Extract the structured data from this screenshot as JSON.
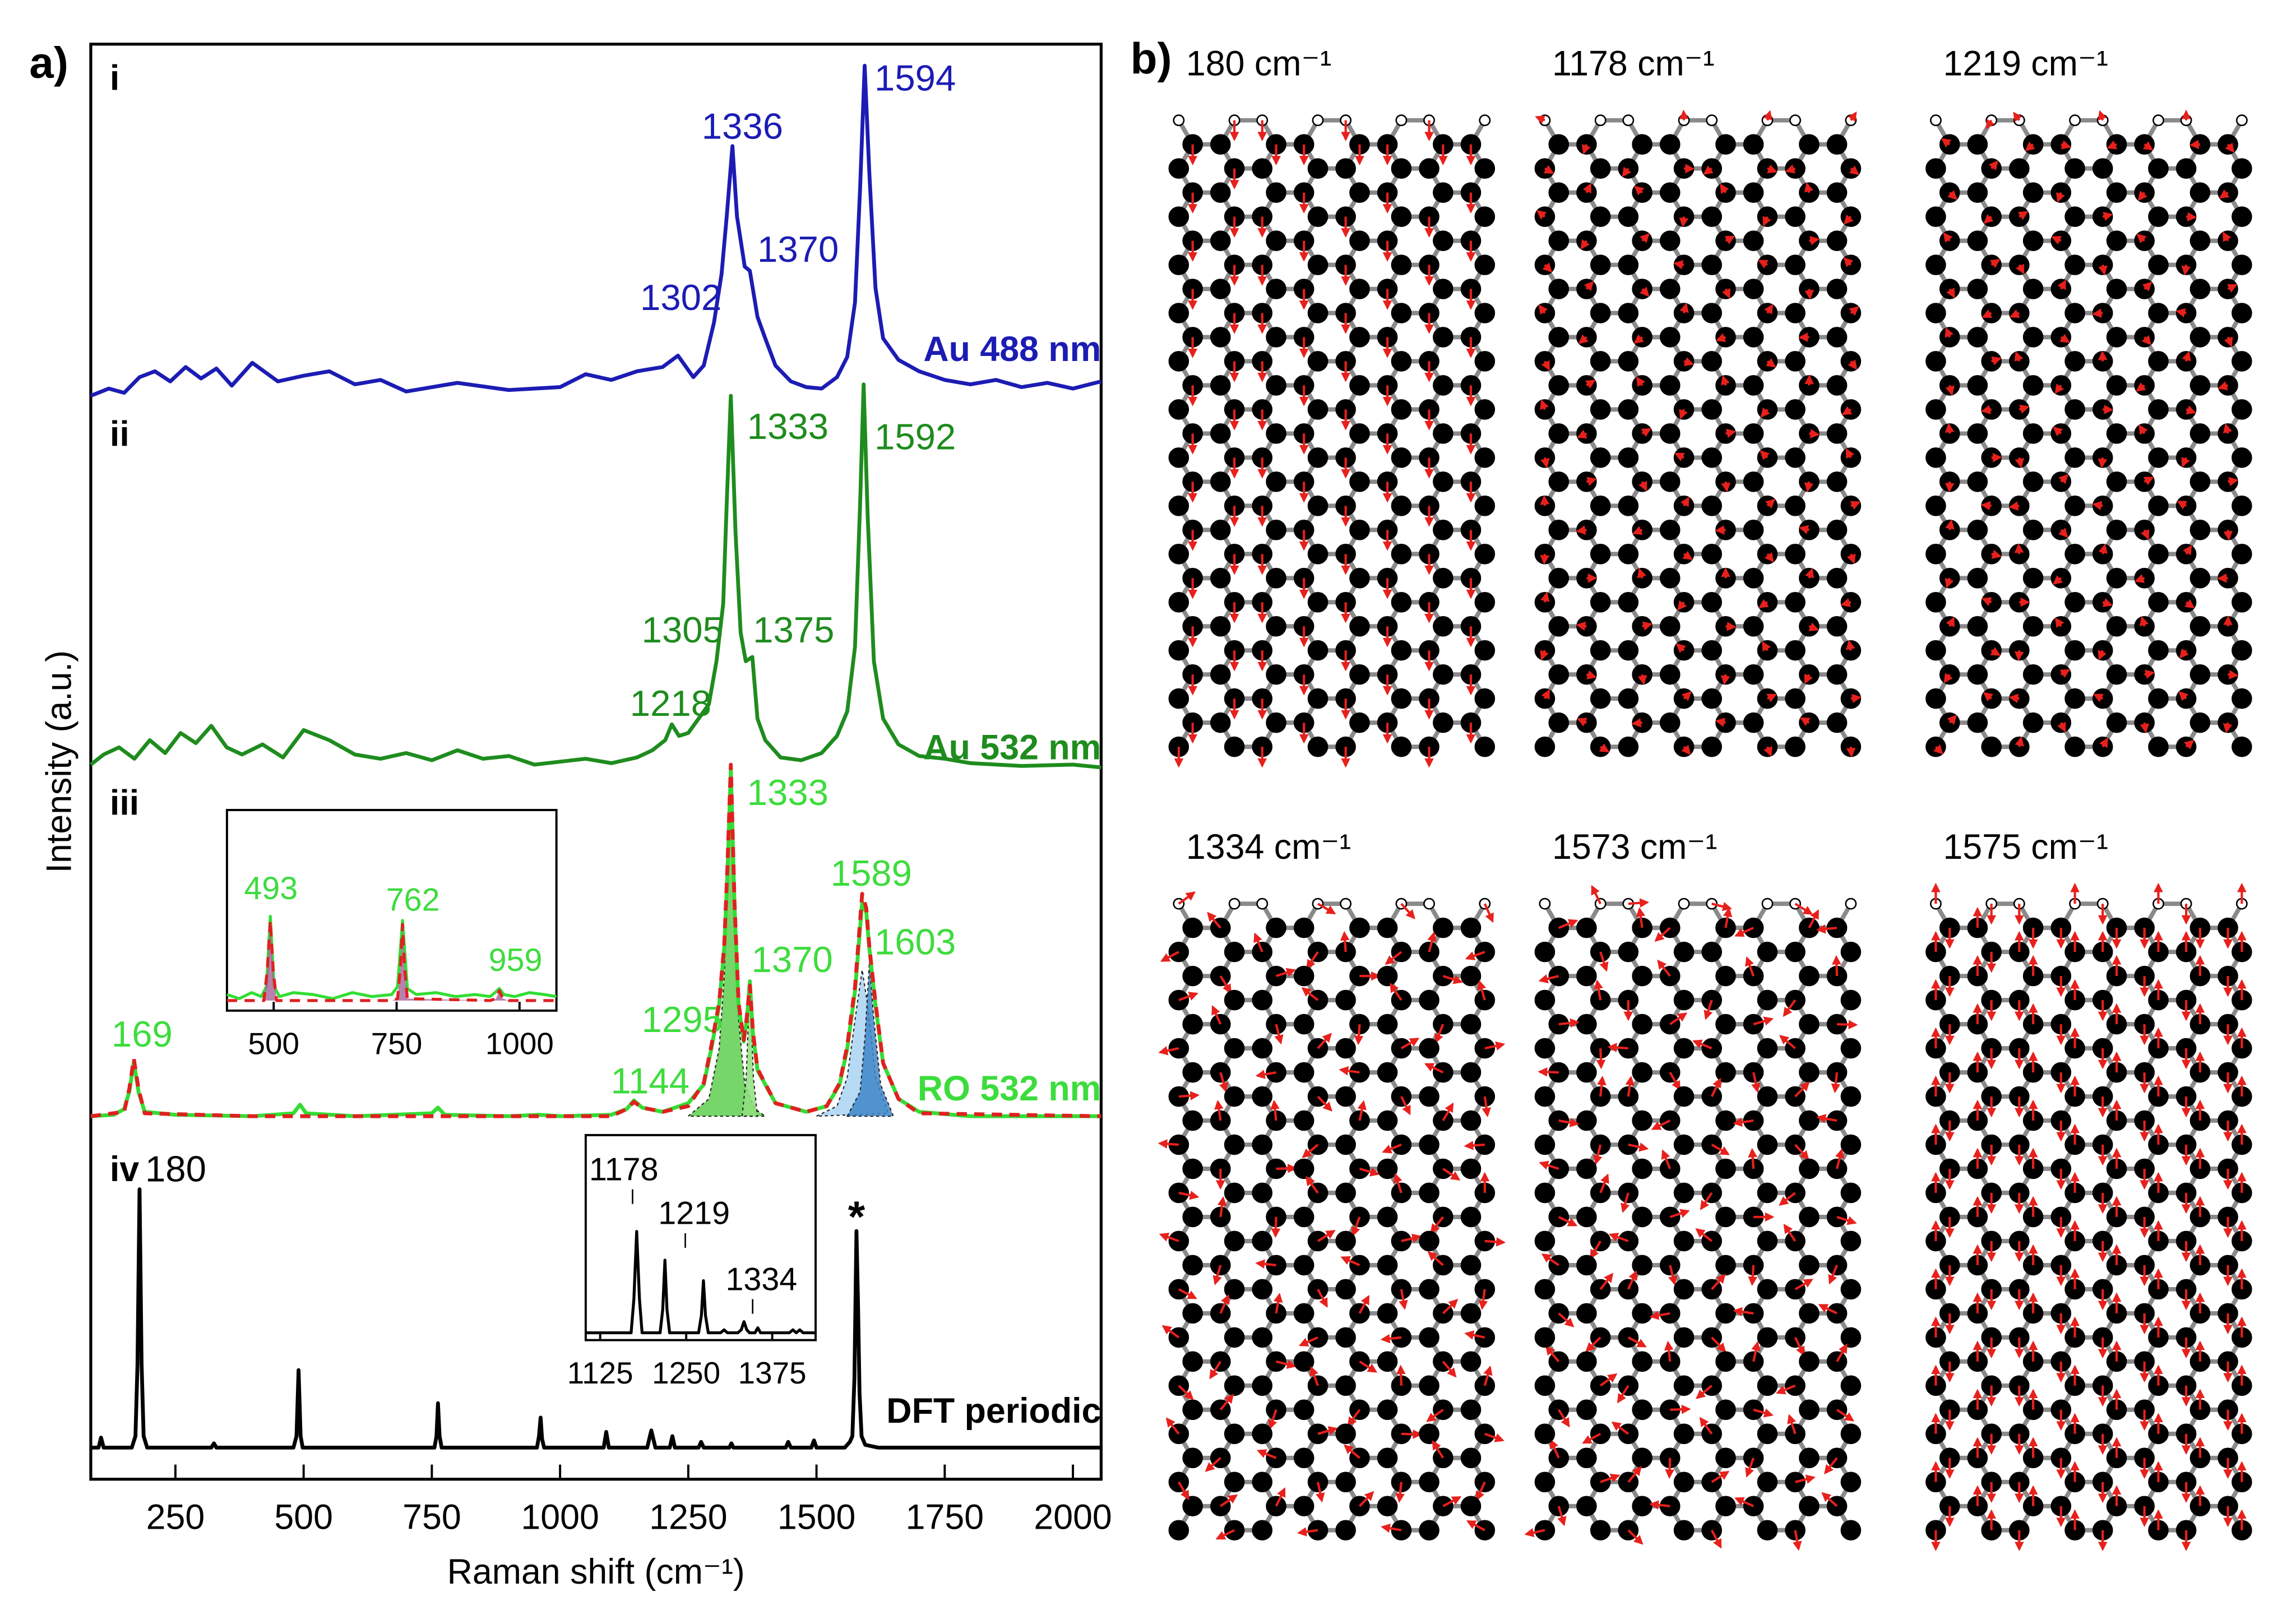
{
  "panel_labels": [
    "a)",
    "b)"
  ],
  "chart_data": [
    {
      "type": "line",
      "xlabel": "Raman shift (cm⁻¹)",
      "ylabel": "Intensity (a.u.)",
      "xlim": [
        85,
        2055
      ],
      "xticks": [
        250,
        500,
        750,
        1000,
        1250,
        1500,
        1750,
        2000
      ],
      "ylim": [
        0,
        100
      ],
      "annotation": "*",
      "series": [
        {
          "tag": "i",
          "name": "Au 488 nm",
          "color": "#1c1cb4",
          "peak_labels": [
            1302,
            1336,
            1370,
            1594
          ],
          "x": [
            85,
            120,
            150,
            180,
            210,
            240,
            270,
            300,
            330,
            360,
            400,
            450,
            500,
            550,
            600,
            650,
            700,
            800,
            900,
            1000,
            1050,
            1100,
            1150,
            1200,
            1230,
            1260,
            1280,
            1300,
            1315,
            1325,
            1336,
            1345,
            1360,
            1370,
            1385,
            1400,
            1420,
            1450,
            1480,
            1510,
            1540,
            1560,
            1575,
            1585,
            1594,
            1603,
            1615,
            1630,
            1660,
            1700,
            1750,
            1800,
            1850,
            1900,
            1950,
            2000,
            2055
          ],
          "values": [
            75.5,
            76,
            75.7,
            76.8,
            77.2,
            76.5,
            77.5,
            76.7,
            77.4,
            76.2,
            77.8,
            76.5,
            76.9,
            77.2,
            76.3,
            76.6,
            75.8,
            76.4,
            75.9,
            76.1,
            77,
            76.6,
            77.2,
            77.5,
            78.3,
            76.8,
            77.6,
            80.6,
            84,
            88,
            92.9,
            88,
            84.5,
            84.2,
            81,
            79.5,
            77.6,
            76.5,
            76.1,
            76,
            76.8,
            78.2,
            82,
            90,
            98.5,
            91,
            83,
            79.5,
            78,
            77.2,
            76.6,
            76.3,
            76.6,
            76.1,
            76.4,
            76,
            76.5
          ]
        },
        {
          "tag": "ii",
          "name": "Au 532 nm",
          "color": "#1e8c1e",
          "peak_labels": [
            1218,
            1305,
            1333,
            1375,
            1592
          ],
          "x": [
            85,
            110,
            140,
            170,
            200,
            230,
            260,
            290,
            320,
            350,
            380,
            420,
            460,
            500,
            550,
            600,
            650,
            700,
            750,
            800,
            850,
            900,
            950,
            1000,
            1050,
            1100,
            1150,
            1180,
            1205,
            1218,
            1232,
            1250,
            1270,
            1290,
            1305,
            1318,
            1325,
            1333,
            1342,
            1352,
            1362,
            1375,
            1385,
            1400,
            1430,
            1470,
            1510,
            1540,
            1560,
            1575,
            1585,
            1592,
            1600,
            1612,
            1630,
            1660,
            1700,
            1750,
            1800,
            1900,
            2000,
            2055
          ],
          "values": [
            49.8,
            50.5,
            51,
            50.2,
            51.5,
            50.6,
            52,
            51.3,
            52.5,
            51,
            50.5,
            51.2,
            50.3,
            52.2,
            51.5,
            50.5,
            50.2,
            50.6,
            50.1,
            50.8,
            50.2,
            50.4,
            49.8,
            50,
            50.2,
            49.9,
            50.3,
            50.8,
            51.5,
            52.6,
            51.8,
            52,
            53,
            54,
            57,
            61,
            68,
            75.5,
            66,
            59,
            57,
            57.3,
            53,
            51.5,
            50.3,
            50.1,
            50.6,
            51.8,
            53.5,
            58,
            68,
            76.3,
            67,
            57,
            53,
            51.2,
            50.4,
            50.2,
            49.9,
            49.7,
            49.8,
            49.6
          ]
        },
        {
          "color": "#222222",
          "fill": "#5fcf4f",
          "x": [
            1250,
            1290,
            1310,
            1320,
            1326,
            1333,
            1340,
            1348,
            1360,
            1380,
            1400
          ],
          "values": [
            25.3,
            26.5,
            30,
            35,
            41,
            49.5,
            40,
            32,
            27.5,
            25.8,
            25.3
          ]
        },
        {
          "color": "#222222",
          "fill": "#8fe07f",
          "x": [
            1355,
            1363,
            1370,
            1377,
            1385
          ],
          "values": [
            25.3,
            28,
            34.7,
            28,
            25.3
          ]
        },
        {
          "color": "#222222",
          "fill": "#a9d4f2",
          "x": [
            1500,
            1540,
            1560,
            1575,
            1589,
            1600,
            1615,
            1640
          ],
          "values": [
            25.3,
            26,
            28,
            32,
            35.5,
            33,
            28,
            25.5
          ]
        },
        {
          "color": "#222222",
          "fill": "#3f86c8",
          "x": [
            1560,
            1585,
            1595,
            1603,
            1612,
            1625,
            1650
          ],
          "values": [
            25.3,
            27,
            31,
            36,
            32,
            27.5,
            25.3
          ]
        },
        {
          "tag": "iii",
          "name": "RO 532 nm",
          "color": "#33dd33",
          "peak_labels": [
            169,
            1144,
            1295,
            1333,
            1370,
            1589,
            1603
          ],
          "x": [
            85,
            130,
            150,
            160,
            169,
            178,
            190,
            250,
            400,
            480,
            493,
            505,
            600,
            750,
            762,
            775,
            900,
            959,
            1000,
            1100,
            1130,
            1144,
            1160,
            1200,
            1250,
            1280,
            1295,
            1310,
            1320,
            1326,
            1333,
            1340,
            1348,
            1358,
            1364,
            1370,
            1376,
            1385,
            1420,
            1480,
            1520,
            1545,
            1560,
            1575,
            1589,
            1597,
            1603,
            1615,
            1630,
            1660,
            1700,
            1800,
            1900,
            2000,
            2055
          ],
          "values": [
            25.3,
            25.4,
            25.8,
            27,
            29.1,
            27,
            25.6,
            25.4,
            25.3,
            25.5,
            26.1,
            25.5,
            25.3,
            25.5,
            25.9,
            25.4,
            25.3,
            25.4,
            25.3,
            25.4,
            25.8,
            26.4,
            25.9,
            25.6,
            26.2,
            27.5,
            30,
            33,
            37,
            42,
            49.5,
            40,
            33,
            30.5,
            32,
            34.7,
            31,
            28.5,
            26.2,
            25.6,
            26,
            27.5,
            30,
            34,
            40.2,
            39.5,
            37,
            33,
            29,
            26.5,
            25.6,
            25.3,
            25.3,
            25.3,
            25.3
          ]
        },
        {
          "color": "#e02020",
          "dashed": true,
          "x": [
            85,
            150,
            160,
            169,
            178,
            190,
            400,
            1100,
            1130,
            1144,
            1160,
            1200,
            1250,
            1280,
            1295,
            1310,
            1320,
            1326,
            1333,
            1340,
            1348,
            1358,
            1364,
            1370,
            1376,
            1385,
            1420,
            1480,
            1520,
            1545,
            1560,
            1575,
            1589,
            1597,
            1603,
            1615,
            1630,
            1660,
            1700,
            2055
          ],
          "values": [
            25.3,
            25.6,
            27.2,
            29.3,
            27.2,
            25.5,
            25.3,
            25.3,
            25.8,
            26.3,
            25.9,
            25.6,
            26,
            27.6,
            30.2,
            33.2,
            37.2,
            42.5,
            49.8,
            40.3,
            33.2,
            30.6,
            32.2,
            34.4,
            31.2,
            28.6,
            26.2,
            25.6,
            26,
            27.6,
            30.2,
            34.3,
            40.8,
            39.8,
            37.1,
            33.2,
            29,
            26.5,
            25.5,
            25.3
          ]
        },
        {
          "tag": "iv",
          "name": "DFT periodic",
          "color": "#000000",
          "peak_labels": [
            180
          ],
          "x": [
            85,
            100,
            105,
            110,
            165,
            172,
            176,
            180,
            184,
            188,
            195,
            320,
            325,
            330,
            480,
            486,
            490,
            494,
            498,
            755,
            759,
            762,
            765,
            769,
            955,
            959,
            962,
            965,
            969,
            1085,
            1090,
            1095,
            1170,
            1178,
            1186,
            1214,
            1219,
            1224,
            1270,
            1275,
            1280,
            1330,
            1334,
            1338,
            1440,
            1445,
            1450,
            1490,
            1495,
            1500,
            1555,
            1565,
            1570,
            1574,
            1578,
            1581,
            1584,
            1588,
            1595,
            1620,
            2055
          ],
          "values": [
            2.2,
            2.2,
            2.9,
            2.2,
            2.2,
            3,
            8,
            20.2,
            8,
            3,
            2.2,
            2.2,
            2.5,
            2.2,
            2.2,
            3,
            7.6,
            3,
            2.2,
            2.2,
            3,
            5.3,
            3,
            2.2,
            2.2,
            3,
            4.3,
            2.8,
            2.2,
            2.2,
            3.3,
            2.2,
            2.2,
            3.4,
            2.2,
            2.2,
            3,
            2.2,
            2.2,
            2.6,
            2.2,
            2.2,
            2.5,
            2.2,
            2.2,
            2.6,
            2.2,
            2.2,
            2.7,
            2.2,
            2.2,
            2.6,
            3,
            7,
            17.3,
            12,
            6,
            3,
            2.4,
            2.2,
            2.2
          ]
        }
      ]
    },
    {
      "type": "line",
      "xlim": [
        405,
        1075
      ],
      "xticks": [
        500,
        750,
        1000
      ],
      "ylim": [
        0,
        100
      ],
      "series": [
        {
          "color": "#33dd33",
          "peak_labels": [
            493,
            762,
            959
          ],
          "x": [
            405,
            430,
            455,
            475,
            485,
            493,
            501,
            512,
            540,
            580,
            620,
            660,
            700,
            740,
            752,
            762,
            772,
            790,
            830,
            870,
            910,
            940,
            950,
            959,
            968,
            990,
            1020,
            1050,
            1075
          ],
          "values": [
            8,
            6,
            9,
            7,
            12,
            47,
            12,
            7,
            9,
            8,
            6,
            9,
            7,
            8,
            12,
            45,
            11,
            8,
            9,
            7,
            8,
            7,
            9,
            11,
            8,
            7,
            9,
            8,
            7
          ]
        },
        {
          "color": "#e02020",
          "dashed": true,
          "fill": "#a8609a",
          "x": [
            405,
            480,
            487,
            493,
            499,
            506,
            740,
            752,
            758,
            762,
            766,
            772,
            940,
            952,
            959,
            966,
            978,
            1075
          ],
          "values": [
            5,
            5,
            20,
            45,
            20,
            5,
            5,
            6,
            22,
            43,
            22,
            6,
            5,
            6,
            10,
            6,
            5,
            5
          ]
        }
      ]
    },
    {
      "type": "line",
      "xlim": [
        1104,
        1438
      ],
      "xticks": [
        1125,
        1250,
        1375
      ],
      "ylim": [
        0,
        100
      ],
      "series": [
        {
          "color": "#000000",
          "peak_labels": [
            1178,
            1219,
            1334
          ],
          "x": [
            1104,
            1170,
            1174,
            1178,
            1182,
            1186,
            1212,
            1216,
            1219,
            1222,
            1226,
            1268,
            1272,
            1275,
            1278,
            1282,
            1300,
            1305,
            1310,
            1325,
            1330,
            1334,
            1338,
            1342,
            1350,
            1354,
            1358,
            1400,
            1405,
            1410,
            1415,
            1420,
            1438
          ],
          "values": [
            3.6,
            3.6,
            20,
            53,
            20,
            3.6,
            3.6,
            15,
            39,
            15,
            3.6,
            3.6,
            12,
            29,
            12,
            3.6,
            3.6,
            5,
            3.6,
            3.6,
            5,
            9,
            5,
            3.6,
            3.6,
            6,
            3.6,
            3.6,
            5,
            3.6,
            5,
            3.6,
            3.6
          ]
        }
      ]
    }
  ],
  "panel_b": {
    "modes": [
      "180 cm⁻¹",
      "1178 cm⁻¹",
      "1219 cm⁻¹",
      "1334 cm⁻¹",
      "1573 cm⁻¹",
      "1575 cm⁻¹"
    ]
  }
}
